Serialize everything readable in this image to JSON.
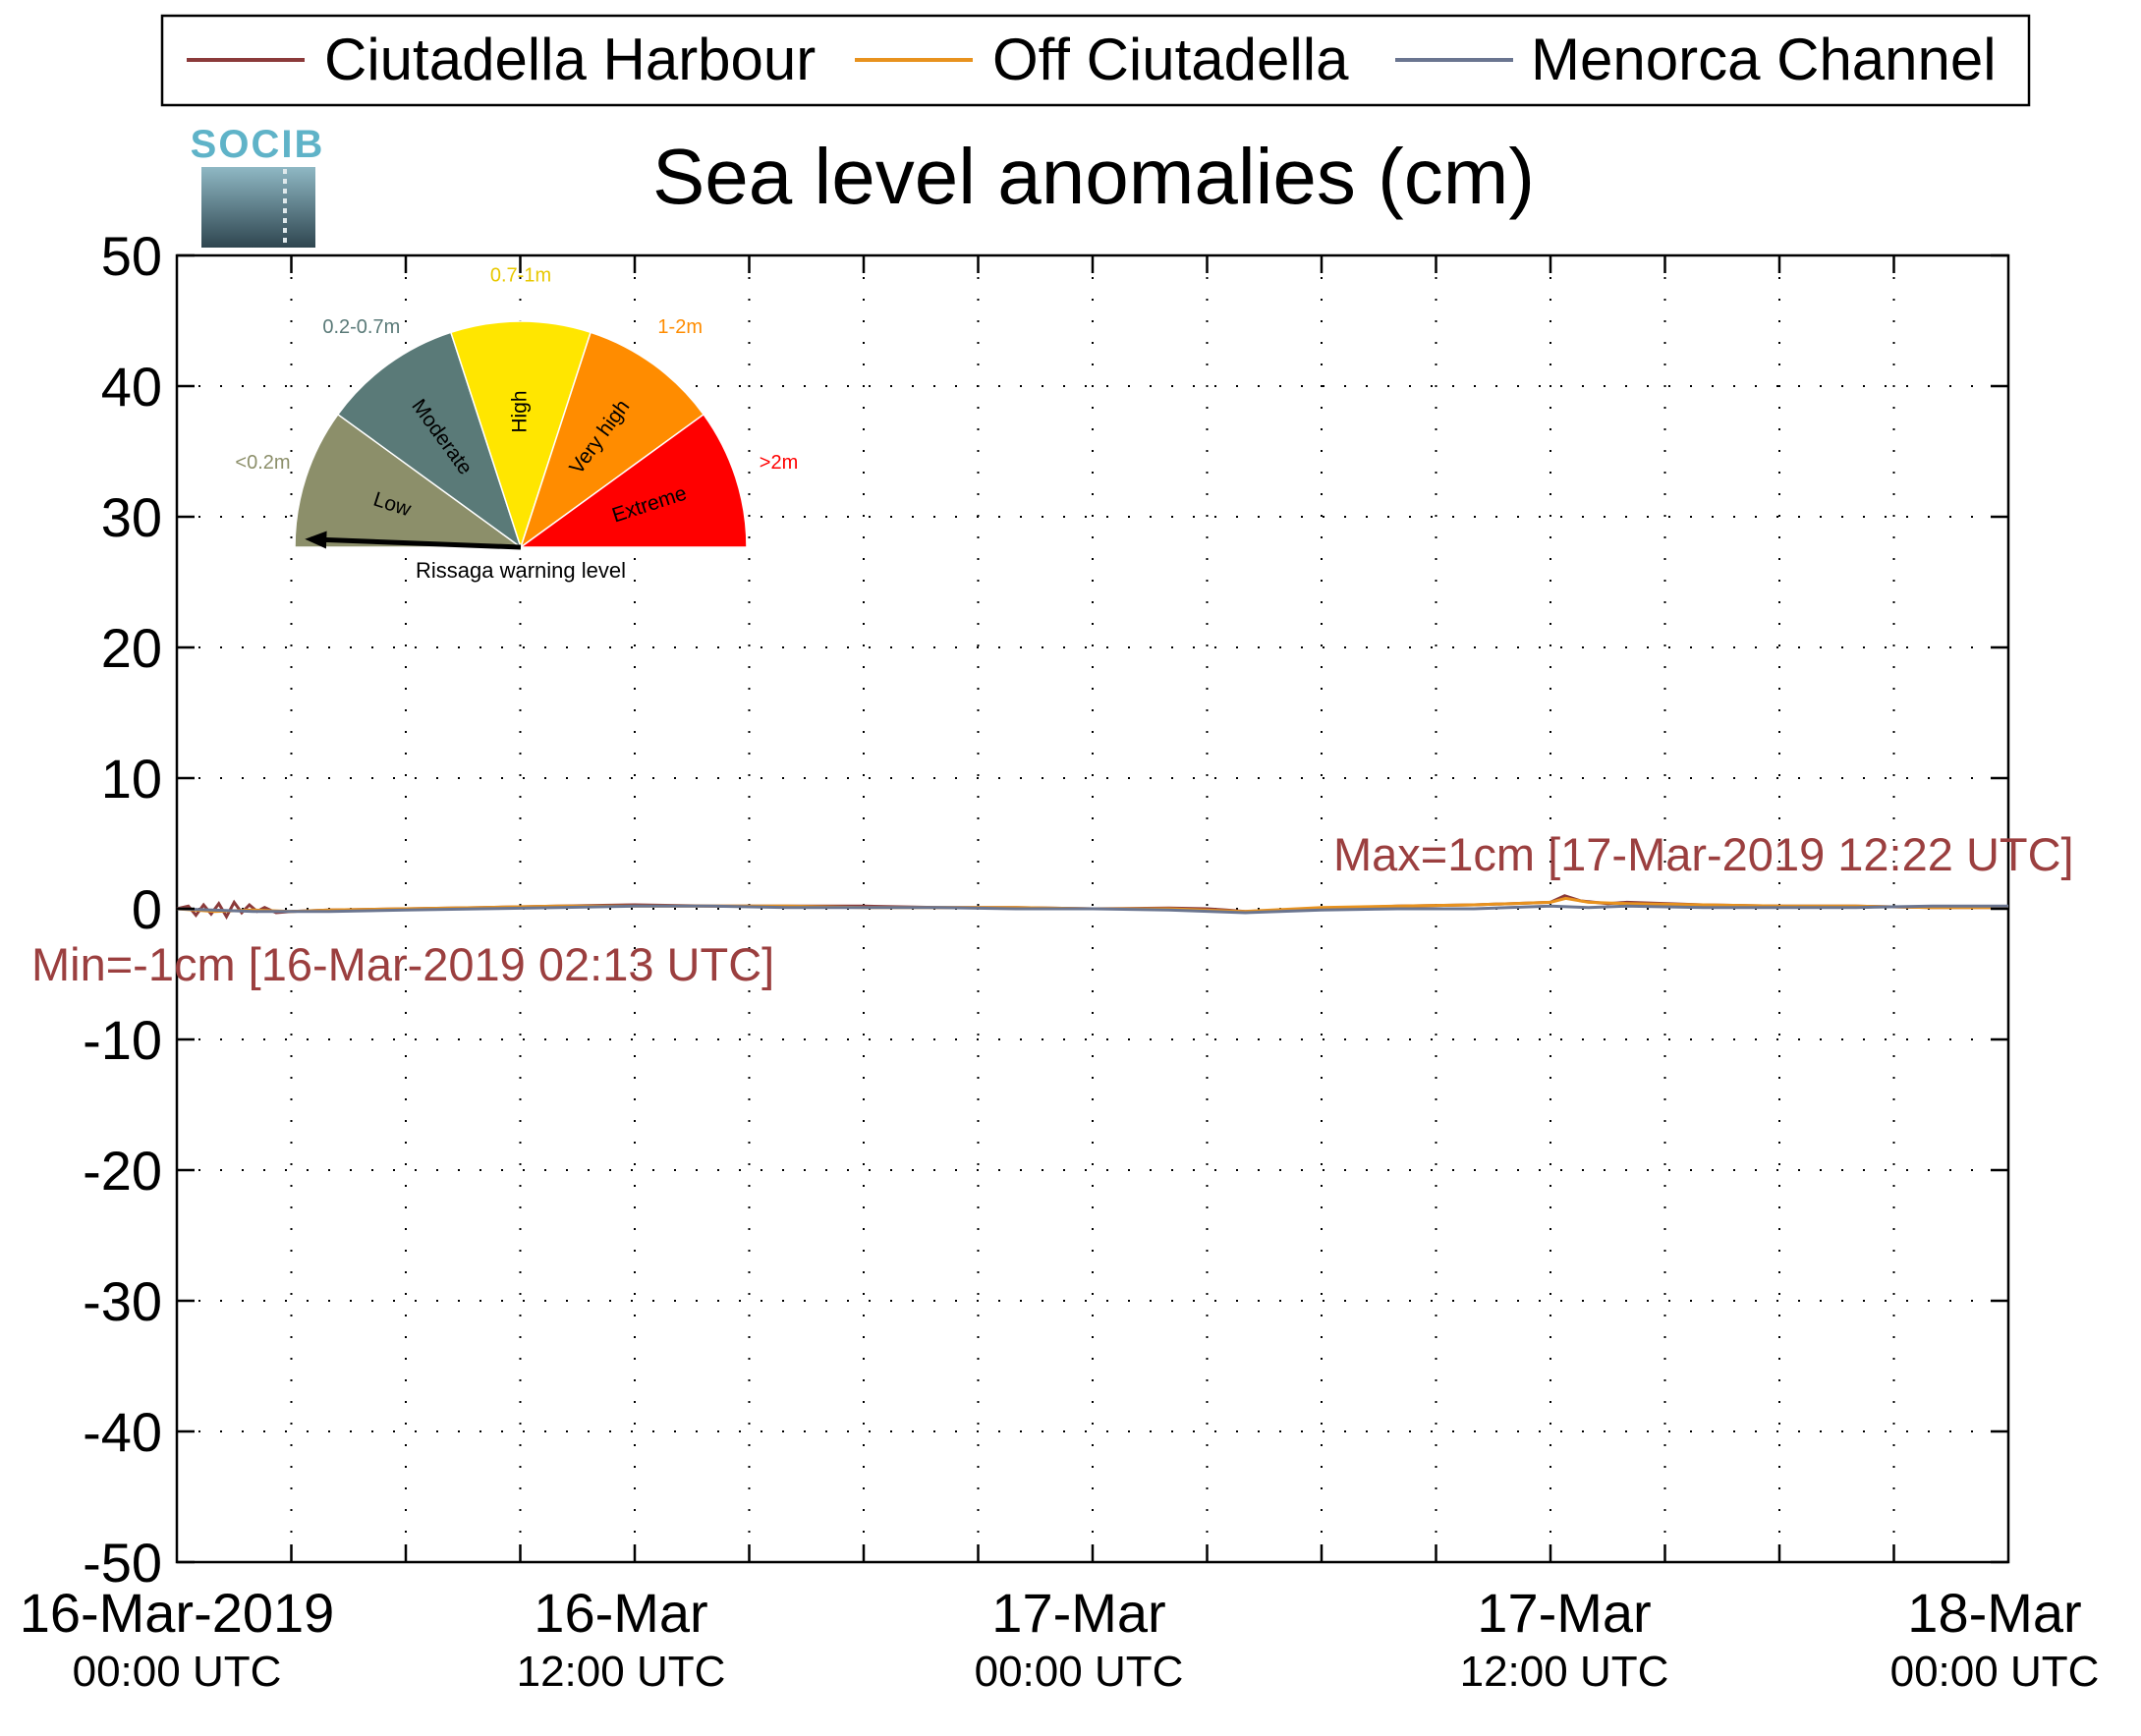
{
  "chart_data": {
    "type": "line",
    "title": "Sea level anomalies (cm)",
    "logo_text": "SOCIB",
    "xlabel": "",
    "ylabel": "",
    "ylim": [
      -50,
      50
    ],
    "yticks": [
      -50,
      -40,
      -30,
      -20,
      -10,
      0,
      10,
      20,
      30,
      40,
      50
    ],
    "xlim": [
      "2019-03-16T00:00",
      "2019-03-18T00:00"
    ],
    "x_unit": "hours since 16-Mar-2019 00:00 UTC",
    "xticks": [
      {
        "hours": 0,
        "line1": "16-Mar-2019",
        "line2": "00:00 UTC"
      },
      {
        "hours": 12,
        "line1": "16-Mar",
        "line2": "12:00 UTC"
      },
      {
        "hours": 24,
        "line1": "17-Mar",
        "line2": "00:00 UTC"
      },
      {
        "hours": 36,
        "line1": "17-Mar",
        "line2": "12:00 UTC"
      },
      {
        "hours": 48,
        "line1": "18-Mar",
        "line2": "00:00 UTC"
      }
    ],
    "grid": true,
    "legend_position": "top",
    "series": [
      {
        "name": "Ciutadella Harbour",
        "color": "#8b3a3a",
        "x": [
          0,
          0.3,
          0.5,
          0.7,
          0.9,
          1.1,
          1.3,
          1.5,
          1.7,
          1.9,
          2.1,
          2.3,
          2.6,
          3,
          4,
          6,
          8,
          10,
          12,
          14,
          16,
          18,
          20,
          22,
          24,
          26,
          27,
          27.5,
          28,
          30,
          32,
          34,
          35,
          36,
          36.37,
          36.8,
          37.5,
          38,
          40,
          42,
          44,
          46,
          48
        ],
        "y": [
          0,
          0.2,
          -0.5,
          0.3,
          -0.4,
          0.4,
          -0.6,
          0.5,
          -0.3,
          0.3,
          -0.2,
          0.1,
          -0.3,
          -0.2,
          -0.1,
          0,
          0.1,
          0.2,
          0.3,
          0.2,
          0.2,
          0.2,
          0.1,
          0.1,
          0,
          0.05,
          0,
          -0.1,
          -0.2,
          0,
          0.2,
          0.3,
          0.4,
          0.5,
          1.0,
          0.6,
          0.4,
          0.5,
          0.3,
          0.2,
          0.2,
          0.1,
          0.1
        ]
      },
      {
        "name": "Off Ciutadella",
        "color": "#e8921e",
        "x": [
          0,
          1,
          2,
          3,
          4,
          6,
          8,
          10,
          12,
          14,
          16,
          18,
          20,
          22,
          24,
          26,
          28,
          30,
          32,
          34,
          35,
          36,
          36.4,
          37,
          38,
          40,
          42,
          44,
          46,
          48
        ],
        "y": [
          0,
          -0.2,
          -0.1,
          -0.2,
          -0.1,
          0,
          0.1,
          0.2,
          0.2,
          0.2,
          0.2,
          0.1,
          0.1,
          0.1,
          0,
          0,
          -0.2,
          0.1,
          0.2,
          0.3,
          0.4,
          0.5,
          0.8,
          0.5,
          0.4,
          0.3,
          0.2,
          0.2,
          0.1,
          0.1
        ]
      },
      {
        "name": "Menorca Channel",
        "color": "#6a7590",
        "x": [
          0,
          2,
          4,
          6,
          8,
          10,
          12,
          14,
          16,
          18,
          20,
          22,
          24,
          26,
          28,
          30,
          32,
          34,
          36,
          37,
          38,
          40,
          42,
          44,
          46,
          48
        ],
        "y": [
          0,
          -0.2,
          -0.2,
          -0.1,
          0,
          0.1,
          0.2,
          0.2,
          0.1,
          0.1,
          0.1,
          0,
          0,
          -0.1,
          -0.3,
          -0.1,
          0,
          0,
          0.2,
          0.1,
          0.2,
          0.1,
          0.1,
          0.1,
          0.2,
          0.2
        ]
      }
    ],
    "annotations": [
      {
        "text": "Max=1cm [17-Mar-2019 12:22 UTC]",
        "color": "#9b3f3f"
      },
      {
        "text": "Min=-1cm [16-Mar-2019 02:13 UTC]",
        "color": "#9b3f3f"
      }
    ],
    "inset_gauge": {
      "caption": "Rissaga warning level",
      "needle_level": "Low",
      "segments": [
        {
          "label": "Low",
          "range": "<0.2m",
          "color": "#8c8f6a",
          "range_color": "#8c8f6a"
        },
        {
          "label": "Moderate",
          "range": "0.2-0.7m",
          "color": "#5a7a78",
          "range_color": "#5a7a78"
        },
        {
          "label": "High",
          "range": "0.7-1m",
          "color": "#ffe600",
          "range_color": "#e8c800"
        },
        {
          "label": "Very high",
          "range": "1-2m",
          "color": "#ff8c00",
          "range_color": "#ff8c00"
        },
        {
          "label": "Extreme",
          "range": ">2m",
          "color": "#ff0000",
          "range_color": "#ff0000"
        }
      ]
    }
  }
}
